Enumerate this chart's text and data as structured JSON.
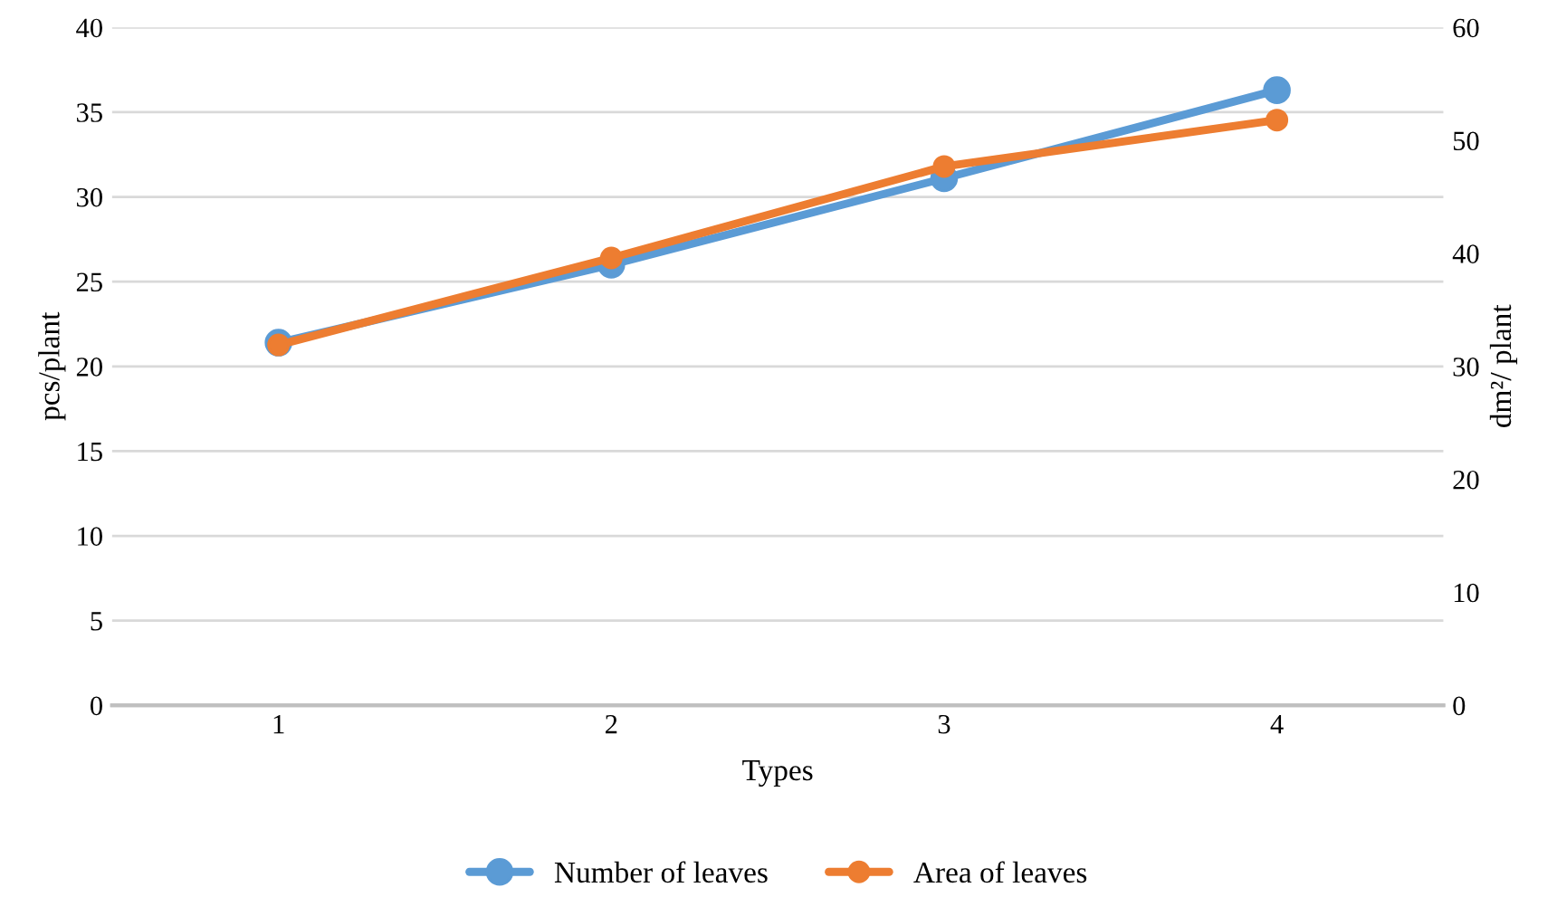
{
  "chart_data": {
    "type": "line",
    "xlabel": "Types",
    "ylabel": "pcs/plant",
    "y2label": "dm²/ plant",
    "categories": [
      "1",
      "2",
      "3",
      "4"
    ],
    "series": [
      {
        "name": "Number of leaves",
        "color": "#5b9bd5",
        "values": [
          21.4,
          26.0,
          31.1,
          36.3
        ]
      },
      {
        "name": "Area of leaves",
        "color": "#ed7d31",
        "values": [
          31.9,
          39.6,
          47.7,
          51.8
        ],
        "axis": "y2"
      }
    ],
    "ylim": [
      0,
      40
    ],
    "yticks": [
      0,
      5,
      10,
      15,
      20,
      25,
      30,
      35,
      40
    ],
    "y2lim": [
      0,
      60
    ],
    "y2ticks": [
      0,
      10,
      20,
      30,
      40,
      50,
      60
    ],
    "grid": "y",
    "legend": "bottom",
    "marker": "circle",
    "line_style": "solid"
  }
}
